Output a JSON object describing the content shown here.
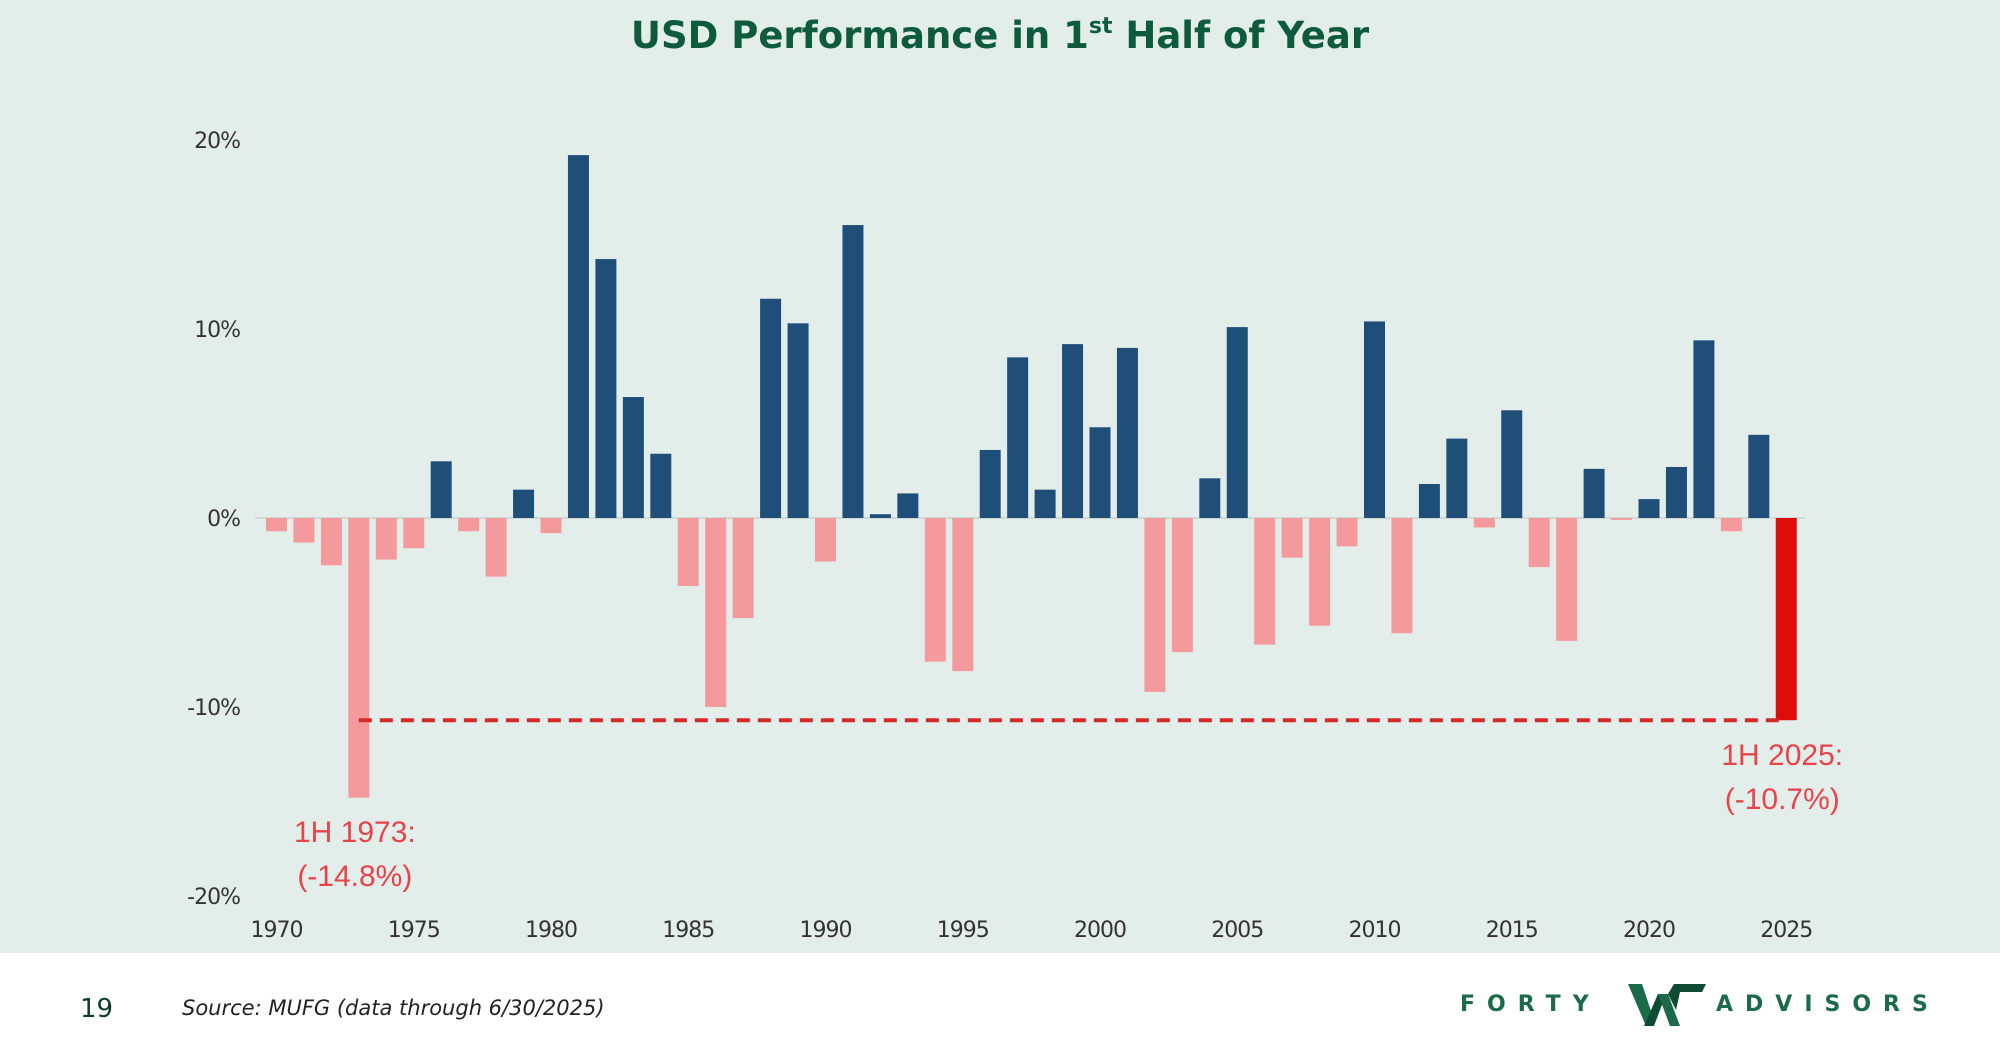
{
  "page": {
    "title_main": "USD Performance in 1",
    "title_sup": "st",
    "title_rest": " Half of Year",
    "page_number": "19",
    "source": "Source: MUFG (data through 6/30/2025)",
    "logo_left": "FORTY",
    "logo_right": "ADVISORS"
  },
  "colors": {
    "positive": "#1f4e79",
    "negative": "#f59a9c",
    "highlight": "#e00b0b",
    "reference_line": "#d42a2a",
    "annotation": "#e8424a",
    "background": "#e3eeeb",
    "title": "#0d5a3e",
    "logo": "#1b6a4a"
  },
  "chart_data": {
    "type": "bar",
    "title": "USD Performance in 1st Half of Year",
    "xlabel": "",
    "ylabel": "",
    "ylim": [
      -20,
      20
    ],
    "yticks": [
      20,
      10,
      0,
      -10,
      -20
    ],
    "ytick_labels": [
      "20%",
      "10%",
      "0%",
      "-10%",
      "-20%"
    ],
    "xticks": [
      "1970",
      "1975",
      "1980",
      "1985",
      "1990",
      "1995",
      "2000",
      "2005",
      "2010",
      "2015",
      "2020",
      "2025"
    ],
    "grid": false,
    "legend": "none",
    "categories": [
      1970,
      1971,
      1972,
      1973,
      1974,
      1975,
      1976,
      1977,
      1978,
      1979,
      1980,
      1981,
      1982,
      1983,
      1984,
      1985,
      1986,
      1987,
      1988,
      1989,
      1990,
      1991,
      1992,
      1993,
      1994,
      1995,
      1996,
      1997,
      1998,
      1999,
      2000,
      2001,
      2002,
      2003,
      2004,
      2005,
      2006,
      2007,
      2008,
      2009,
      2010,
      2011,
      2012,
      2013,
      2014,
      2015,
      2016,
      2017,
      2018,
      2019,
      2020,
      2021,
      2022,
      2023,
      2024,
      2025
    ],
    "values": [
      -0.7,
      -1.3,
      -2.5,
      -14.8,
      -2.2,
      -1.6,
      3.0,
      -0.7,
      -3.1,
      1.5,
      -0.8,
      19.2,
      13.7,
      6.4,
      3.4,
      -3.6,
      -10.0,
      -5.3,
      11.6,
      10.3,
      -2.3,
      15.5,
      0.2,
      1.3,
      -7.6,
      -8.1,
      3.6,
      8.5,
      1.5,
      9.2,
      4.8,
      9.0,
      -9.2,
      -7.1,
      2.1,
      10.1,
      -6.7,
      -2.1,
      -5.7,
      -1.5,
      10.4,
      -6.1,
      1.8,
      4.2,
      -0.5,
      5.7,
      -2.6,
      -6.5,
      2.6,
      -0.1,
      1.0,
      2.7,
      9.4,
      -0.7,
      4.4,
      -10.7
    ],
    "highlight_year": 2025,
    "reference_line": {
      "value": -10.7,
      "from": 1973,
      "to": 2025,
      "style": "dashed"
    },
    "annotations": [
      {
        "x": 1973,
        "y": -14.8,
        "line1": "1H 1973:",
        "line2": "(-14.8%)"
      },
      {
        "x": 2025,
        "y": -10.7,
        "line1": "1H 2025:",
        "line2": "(-10.7%)"
      }
    ]
  }
}
